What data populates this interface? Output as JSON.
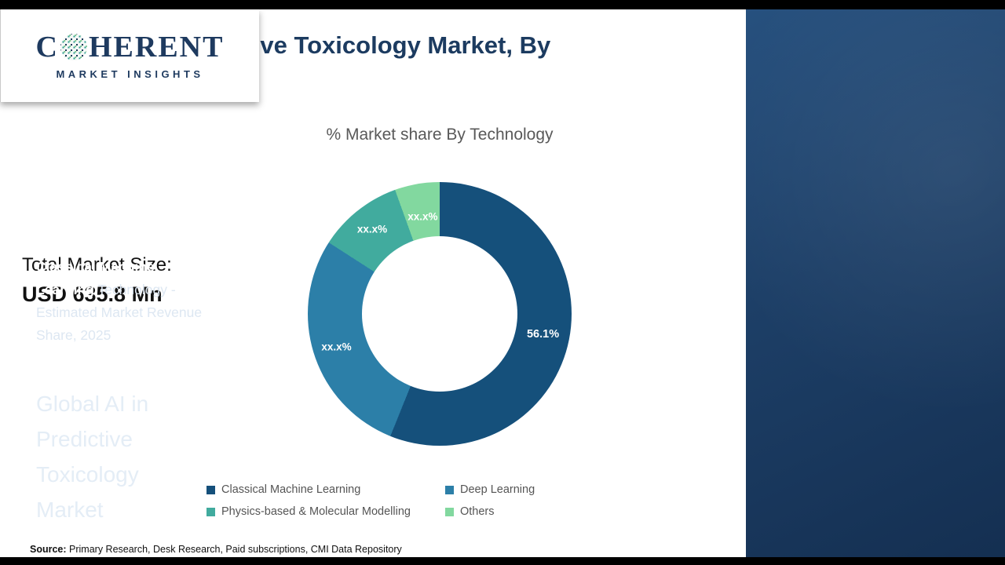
{
  "header": {
    "title": "Global AI in Predictive Toxicology Market, By Technology, 2025"
  },
  "left_panel": {
    "market_size_label": "Total Market Size:",
    "market_size_value": "USD 635.8 Mn"
  },
  "chart_data": {
    "type": "pie",
    "subtype": "donut",
    "title": "% Market share By Technology",
    "categories": [
      "Classical Machine Learning",
      "Deep Learning",
      "Physics-based & Molecular Modelling",
      "Others"
    ],
    "values": [
      56.1,
      28.0,
      10.4,
      5.5
    ],
    "value_labels": [
      "56.1%",
      "xx.x%",
      "xx.x%",
      "xx.x%"
    ],
    "colors": [
      "#15507b",
      "#2c7fa8",
      "#41ab9e",
      "#82d89f"
    ],
    "legend_position": "bottom"
  },
  "footer": {
    "source_label": "Source:",
    "source_text": " Primary Research, Desk Research, Paid subscriptions, CMI Data Repository"
  },
  "sidebar": {
    "logo_c": "C",
    "logo_rest": "HERENT",
    "logo_sub": "MARKET INSIGHTS",
    "stat_value": "56.1%",
    "stat_highlight": "Classical Machine Learning",
    "stat_rest": " Technology - Estimated Market Revenue Share, 2025",
    "panel_title": "Global AI in Predictive Toxicology Market"
  }
}
